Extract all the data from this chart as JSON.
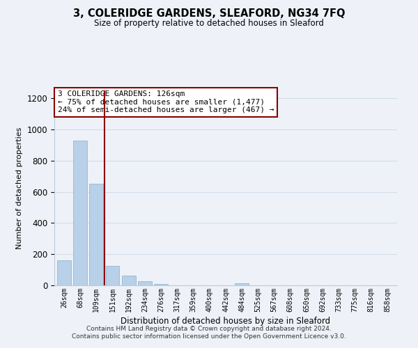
{
  "title": "3, COLERIDGE GARDENS, SLEAFORD, NG34 7FQ",
  "subtitle": "Size of property relative to detached houses in Sleaford",
  "xlabel": "Distribution of detached houses by size in Sleaford",
  "ylabel": "Number of detached properties",
  "bar_labels": [
    "26sqm",
    "68sqm",
    "109sqm",
    "151sqm",
    "192sqm",
    "234sqm",
    "276sqm",
    "317sqm",
    "359sqm",
    "400sqm",
    "442sqm",
    "484sqm",
    "525sqm",
    "567sqm",
    "608sqm",
    "650sqm",
    "692sqm",
    "733sqm",
    "775sqm",
    "816sqm",
    "858sqm"
  ],
  "bar_values": [
    160,
    930,
    650,
    125,
    62,
    28,
    8,
    0,
    0,
    0,
    0,
    12,
    0,
    0,
    0,
    0,
    0,
    0,
    0,
    0,
    0
  ],
  "bar_color": "#b8d0e8",
  "bar_edge_color": "#8ab0cc",
  "property_line_x": 2.5,
  "property_line_color": "#8b0000",
  "annotation_line1": "3 COLERIDGE GARDENS: 126sqm",
  "annotation_line2": "← 75% of detached houses are smaller (1,477)",
  "annotation_line3": "24% of semi-detached houses are larger (467) →",
  "ylim": [
    0,
    1250
  ],
  "yticks": [
    0,
    200,
    400,
    600,
    800,
    1000,
    1200
  ],
  "footer_line1": "Contains HM Land Registry data © Crown copyright and database right 2024.",
  "footer_line2": "Contains public sector information licensed under the Open Government Licence v3.0.",
  "grid_color": "#d0dce8",
  "background_color": "#eef2f8"
}
